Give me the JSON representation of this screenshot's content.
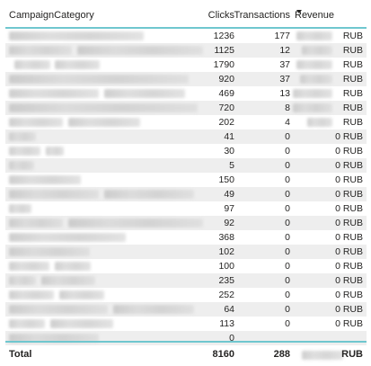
{
  "table": {
    "headers": {
      "category": "CampaignCategory",
      "clicks": "Clicks",
      "transactions": "Transactions",
      "revenue": "Revenue"
    },
    "sort_icon": "sort-descending-icon",
    "rows": [
      {
        "clicks": "1236",
        "transactions": "177",
        "revenue": "RUB"
      },
      {
        "clicks": "1125",
        "transactions": "12",
        "revenue": "RUB"
      },
      {
        "clicks": "1790",
        "transactions": "37",
        "revenue": "RUB"
      },
      {
        "clicks": "920",
        "transactions": "37",
        "revenue": "RUB"
      },
      {
        "clicks": "469",
        "transactions": "13",
        "revenue": "RUB"
      },
      {
        "clicks": "720",
        "transactions": "8",
        "revenue": "RUB"
      },
      {
        "clicks": "202",
        "transactions": "4",
        "revenue": "RUB"
      },
      {
        "clicks": "41",
        "transactions": "0",
        "revenue": "0 RUB"
      },
      {
        "clicks": "30",
        "transactions": "0",
        "revenue": "0 RUB"
      },
      {
        "clicks": "5",
        "transactions": "0",
        "revenue": "0 RUB"
      },
      {
        "clicks": "150",
        "transactions": "0",
        "revenue": "0 RUB"
      },
      {
        "clicks": "49",
        "transactions": "0",
        "revenue": "0 RUB"
      },
      {
        "clicks": "97",
        "transactions": "0",
        "revenue": "0 RUB"
      },
      {
        "clicks": "92",
        "transactions": "0",
        "revenue": "0 RUB"
      },
      {
        "clicks": "368",
        "transactions": "0",
        "revenue": "0 RUB"
      },
      {
        "clicks": "102",
        "transactions": "0",
        "revenue": "0 RUB"
      },
      {
        "clicks": "100",
        "transactions": "0",
        "revenue": "0 RUB"
      },
      {
        "clicks": "235",
        "transactions": "0",
        "revenue": "0 RUB"
      },
      {
        "clicks": "252",
        "transactions": "0",
        "revenue": "0 RUB"
      },
      {
        "clicks": "64",
        "transactions": "0",
        "revenue": "0 RUB"
      },
      {
        "clicks": "113",
        "transactions": "0",
        "revenue": "0 RUB"
      },
      {
        "clicks": "0",
        "transactions": "",
        "revenue": ""
      }
    ],
    "total": {
      "label": "Total",
      "clicks": "8160",
      "transactions": "288",
      "revenue": "RUB"
    }
  }
}
